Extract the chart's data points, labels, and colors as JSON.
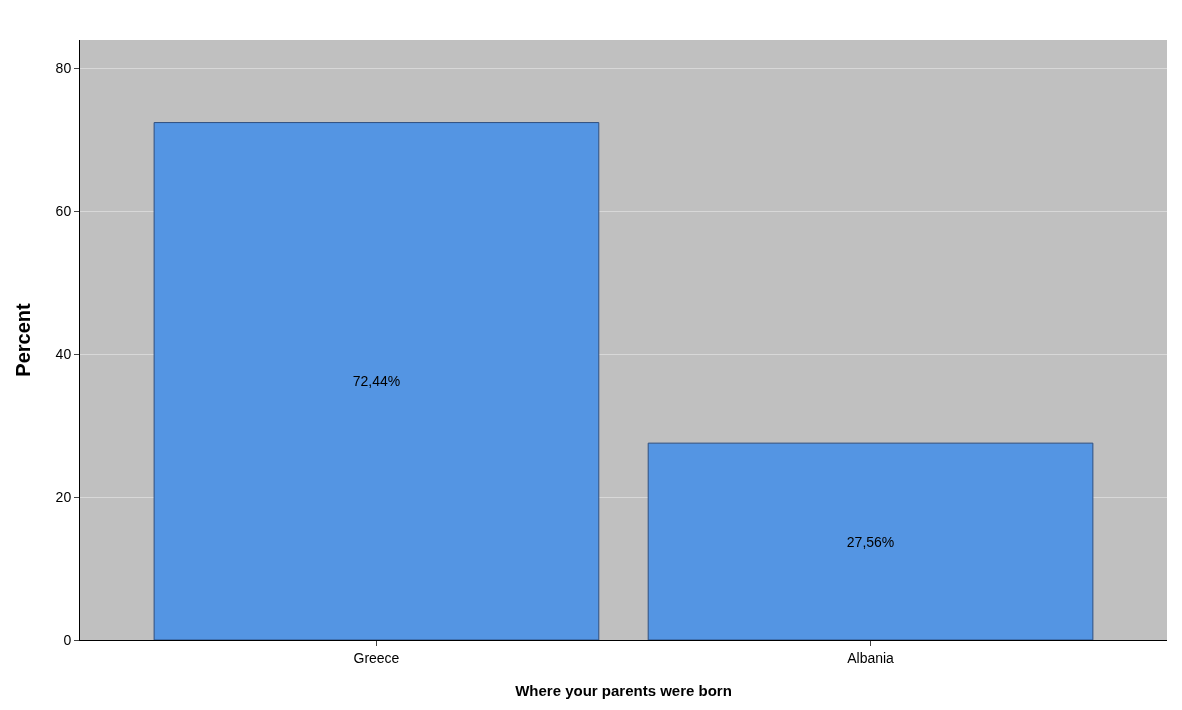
{
  "chart_data": {
    "type": "bar",
    "xlabel": "Where your parents were born",
    "ylabel": "Percent",
    "categories": [
      "Greece",
      "Albania"
    ],
    "values": [
      72.44,
      27.56
    ],
    "value_labels": [
      "72,44%",
      "27,56%"
    ],
    "color": "#5495e3",
    "ylim": [
      0,
      84
    ],
    "yticks": [
      0,
      20,
      40,
      60,
      80
    ],
    "grid": "y"
  }
}
